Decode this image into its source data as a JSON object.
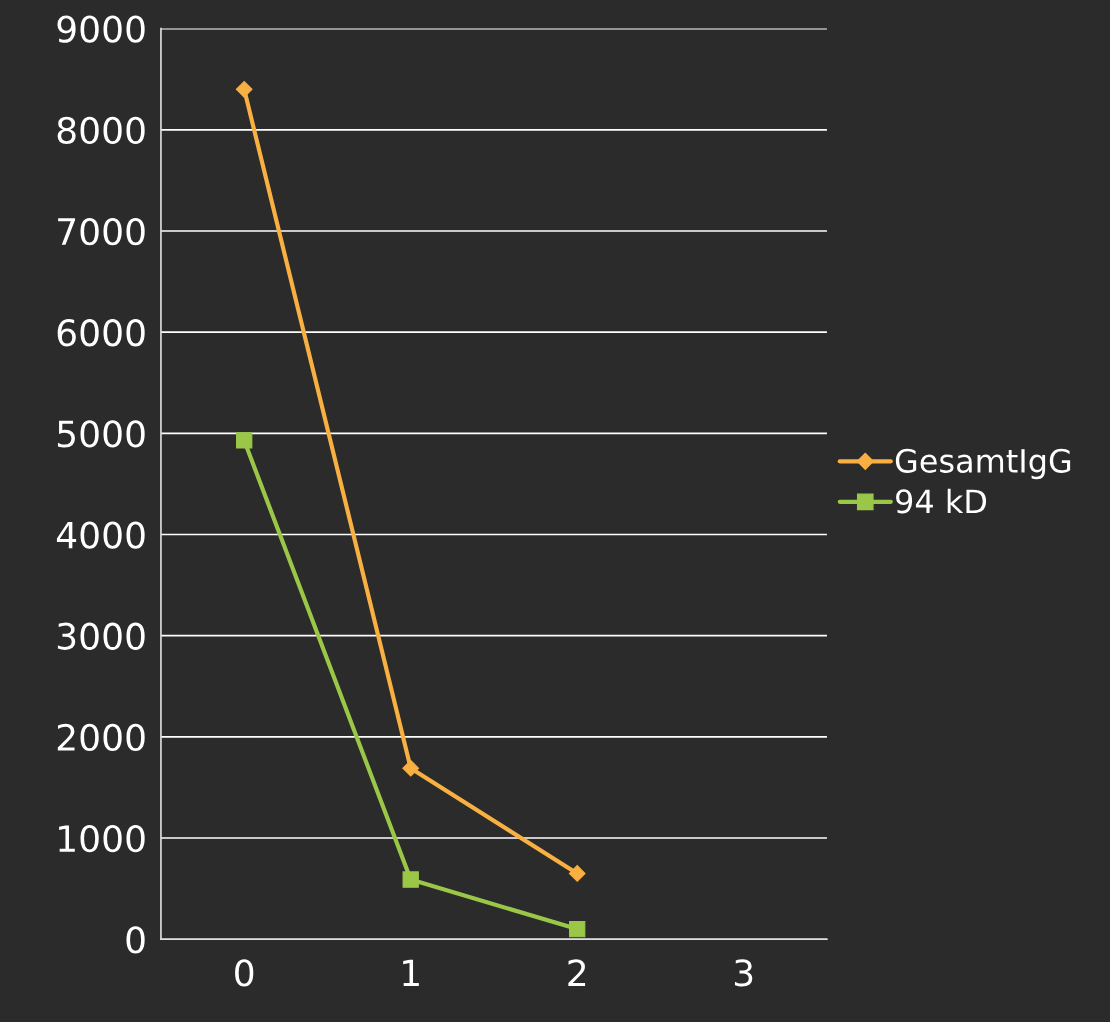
{
  "chart_data": {
    "type": "line",
    "categories": [
      "0",
      "1",
      "2",
      "3"
    ],
    "series": [
      {
        "name": "GesamtIgG",
        "color": "#f7b041",
        "marker": "diamond",
        "values": [
          8400,
          1690,
          650,
          null
        ]
      },
      {
        "name": "94 kD",
        "color": "#9bc748",
        "marker": "square",
        "values": [
          4930,
          590,
          100,
          null
        ]
      }
    ],
    "ylim": [
      0,
      9000
    ],
    "yticks": [
      0,
      1000,
      2000,
      3000,
      4000,
      5000,
      6000,
      7000,
      8000,
      9000
    ],
    "grid": "y",
    "legend": "right"
  }
}
